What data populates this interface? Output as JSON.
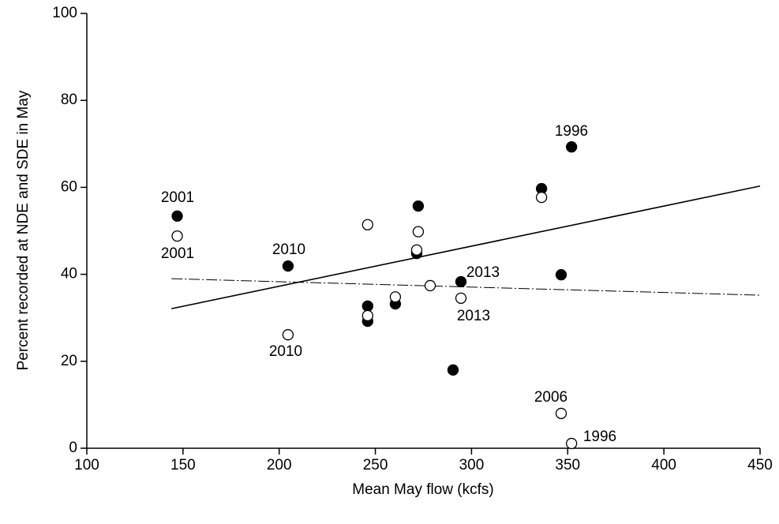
{
  "chart_data": {
    "type": "scatter",
    "xlabel": "Mean May flow (kcfs)",
    "ylabel": "Percent recorded at NDE and SDE in May",
    "xlim": [
      100,
      450
    ],
    "xticks": [
      100,
      150,
      200,
      250,
      300,
      350,
      400,
      450
    ],
    "ylim": [
      0,
      100
    ],
    "yticks": [
      0,
      20,
      40,
      60,
      80,
      100
    ],
    "series": [
      {
        "color": "#000000",
        "filled": true,
        "x": [
          147,
          204.6,
          246,
          246,
          260.4,
          272.3,
          271.5,
          294.5,
          290.4,
          336.4,
          346.6,
          352
        ],
        "values": [
          53.4,
          41.9,
          32.7,
          29.2,
          33.2,
          55.7,
          44.8,
          38.3,
          18.0,
          59.7,
          39.9,
          69.3
        ]
      },
      {
        "color": "#000000",
        "filled": false,
        "x": [
          147,
          204.6,
          246,
          246,
          260.4,
          272.3,
          271.5,
          278.5,
          294.5,
          336.4,
          346.6,
          352
        ],
        "values": [
          48.8,
          26.1,
          51.4,
          30.5,
          34.8,
          49.8,
          45.6,
          37.4,
          34.5,
          57.7,
          8.0,
          1.1
        ]
      }
    ],
    "fit_lines": [
      {
        "dash": "solid",
        "x": [
          144,
          450
        ],
        "values": [
          32.1,
          60.3
        ]
      },
      {
        "dash": "dashdot",
        "x": [
          144,
          450
        ],
        "values": [
          39.0,
          35.2
        ]
      }
    ],
    "annotations": [
      "1996",
      "2001",
      "2001",
      "2010",
      "2010",
      "2013",
      "2013",
      "2006",
      "1996"
    ]
  }
}
